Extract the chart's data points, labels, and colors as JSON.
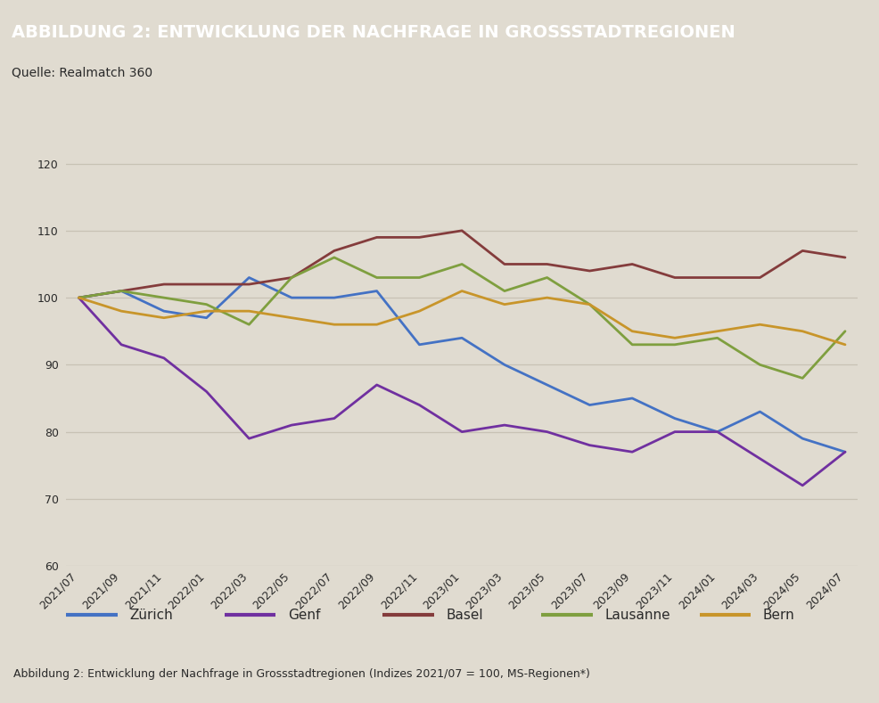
{
  "title": "ABBILDUNG 2: ENTWICKLUNG DER NACHFRAGE IN GROSSSTADTREGIONEN",
  "source": "Quelle: Realmatch 360",
  "caption": "Abbildung 2: Entwicklung der Nachfrage in Grossstadtregionen (Indizes 2021/07 = 100, MS-Regionen*)",
  "header_bg": "#9c9484",
  "chart_bg": "#e0dbd0",
  "grid_color": "#c8c2b4",
  "ylim": [
    60,
    125
  ],
  "yticks": [
    60,
    70,
    80,
    90,
    100,
    110,
    120
  ],
  "x_labels": [
    "2021/07",
    "2021/09",
    "2021/11",
    "2022/01",
    "2022/03",
    "2022/05",
    "2022/07",
    "2022/09",
    "2022/11",
    "2023/01",
    "2023/03",
    "2023/05",
    "2023/07",
    "2023/09",
    "2023/11",
    "2024/01",
    "2024/03",
    "2024/05",
    "2024/07"
  ],
  "series": {
    "Zürich": {
      "color": "#4472c4",
      "values": [
        100,
        101,
        98,
        97,
        103,
        100,
        100,
        101,
        93,
        94,
        90,
        87,
        84,
        85,
        82,
        80,
        83,
        79,
        77
      ]
    },
    "Genf": {
      "color": "#7030a0",
      "values": [
        100,
        93,
        91,
        86,
        79,
        81,
        82,
        87,
        84,
        80,
        81,
        80,
        78,
        77,
        80,
        80,
        76,
        72,
        77
      ]
    },
    "Basel": {
      "color": "#843c3c",
      "values": [
        100,
        101,
        102,
        102,
        102,
        103,
        107,
        109,
        109,
        110,
        105,
        105,
        104,
        105,
        103,
        103,
        103,
        107,
        106
      ]
    },
    "Lausanne": {
      "color": "#7f9f3f",
      "values": [
        100,
        101,
        100,
        99,
        96,
        103,
        106,
        103,
        103,
        105,
        101,
        103,
        99,
        93,
        93,
        94,
        90,
        88,
        95
      ]
    },
    "Bern": {
      "color": "#c8952a",
      "values": [
        100,
        98,
        97,
        98,
        98,
        97,
        96,
        96,
        98,
        101,
        99,
        100,
        99,
        95,
        94,
        95,
        96,
        95,
        93
      ]
    }
  },
  "legend_order": [
    "Zürich",
    "Genf",
    "Basel",
    "Lausanne",
    "Bern"
  ],
  "title_fontsize": 14,
  "source_fontsize": 10,
  "caption_fontsize": 9,
  "tick_fontsize": 9,
  "legend_fontsize": 11
}
